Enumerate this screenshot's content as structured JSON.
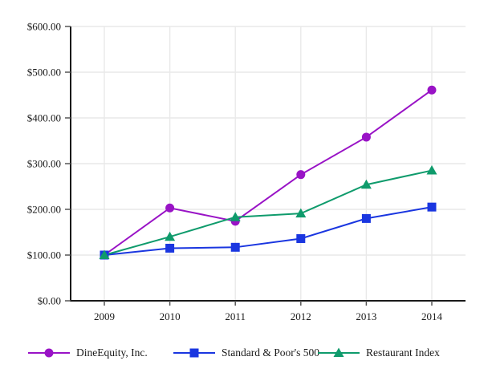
{
  "chart_data": {
    "type": "line",
    "title": "",
    "xlabel": "",
    "ylabel": "",
    "categories": [
      "2009",
      "2010",
      "2011",
      "2012",
      "2013",
      "2014"
    ],
    "series": [
      {
        "name": "DineEquity, Inc.",
        "marker": "circle",
        "color": "#9913c6",
        "values": [
          100,
          203,
          174,
          276,
          358,
          461
        ]
      },
      {
        "name": "Standard & Poor's 500",
        "marker": "square",
        "color": "#1a36e0",
        "values": [
          100,
          115,
          117,
          136,
          180,
          205
        ]
      },
      {
        "name": "Restaurant Index",
        "marker": "triangle",
        "color": "#0f9b6c",
        "values": [
          100,
          140,
          183,
          191,
          254,
          285
        ]
      }
    ],
    "ylim": [
      0,
      600
    ],
    "ytick_step": 100,
    "ytick_labels": [
      "$0.00",
      "$100.00",
      "$200.00",
      "$300.00",
      "$400.00",
      "$500.00",
      "$600.00"
    ],
    "grid": true,
    "legend_position": "bottom"
  },
  "style_colors": {
    "axis": "#1a1a1a",
    "tick": "#555555",
    "gridline": "#e9e9e9",
    "label_text": "#1a1a1a"
  }
}
